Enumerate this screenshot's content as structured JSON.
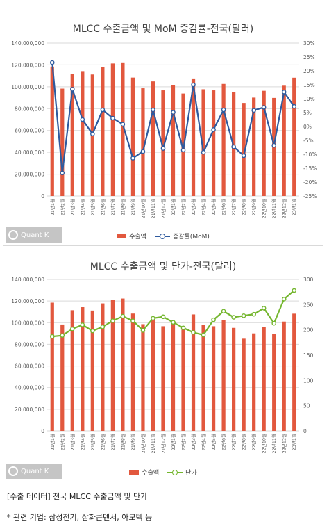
{
  "chart_data": [
    {
      "type": "bar",
      "title": "MLCC 수출금액 및 MoM 증감률-전국(달러)",
      "categories": [
        "21년1월",
        "21년2월",
        "21년3월",
        "21년4월",
        "21년5월",
        "21년6월",
        "21년7월",
        "21년8월",
        "21년9월",
        "21년10월",
        "21년11월",
        "21년12월",
        "22년1월",
        "22년2월",
        "22년3월",
        "22년4월",
        "22년5월",
        "22년6월",
        "22년7월",
        "22년8월",
        "22년9월",
        "22년10월",
        "22년11월",
        "22년12월",
        "23년1월"
      ],
      "y_ticks": [
        "0",
        "20,000,000",
        "40,000,000",
        "60,000,000",
        "80,000,000",
        "100,000,000",
        "120,000,000",
        "140,000,000"
      ],
      "y2_ticks": [
        "-25%",
        "-20%",
        "-15%",
        "-10%",
        "-5%",
        "0%",
        "5%",
        "10%",
        "15%",
        "20%",
        "25%",
        "30%"
      ],
      "ylim": [
        0,
        140000000
      ],
      "y2lim": [
        -25,
        30
      ],
      "grid": true,
      "legend_position": "bottom",
      "series": [
        {
          "name": "수출액",
          "kind": "bar",
          "color": "#e2583e",
          "values": [
            118500000,
            98300000,
            111500000,
            114300000,
            111200000,
            117800000,
            121300000,
            122300000,
            108400000,
            98600000,
            104900000,
            96700000,
            101600000,
            93800000,
            107600000,
            97700000,
            96700000,
            102600000,
            95200000,
            85200000,
            90100000,
            96300000,
            89800000,
            101000000,
            108300000
          ]
        },
        {
          "name": "증감률(MoM)",
          "kind": "line",
          "axis": "right",
          "color": "#2e5a9e",
          "values": [
            23.0,
            -16.7,
            13.4,
            2.5,
            -2.7,
            6.0,
            3.0,
            0.8,
            -11.4,
            -9.0,
            6.0,
            -7.9,
            5.1,
            -8.5,
            15.0,
            -9.3,
            -1.1,
            6.0,
            -7.3,
            -10.5,
            5.8,
            6.9,
            -6.8,
            12.4,
            7.2
          ]
        }
      ]
    },
    {
      "type": "bar",
      "title": "MLCC 수출금액 및 단가-전국(달러)",
      "categories": [
        "21년1월",
        "21년2월",
        "21년3월",
        "21년4월",
        "21년5월",
        "21년6월",
        "21년7월",
        "21년8월",
        "21년9월",
        "21년10월",
        "21년11월",
        "21년12월",
        "22년1월",
        "22년2월",
        "22년3월",
        "22년4월",
        "22년5월",
        "22년6월",
        "22년7월",
        "22년8월",
        "22년9월",
        "22년10월",
        "22년11월",
        "22년12월",
        "23년1월"
      ],
      "y_ticks": [
        "0",
        "20,000,000",
        "40,000,000",
        "60,000,000",
        "80,000,000",
        "100,000,000",
        "120,000,000",
        "140,000,000"
      ],
      "y2_ticks": [
        "0",
        "50",
        "100",
        "150",
        "200",
        "250",
        "300"
      ],
      "ylim": [
        0,
        140000000
      ],
      "y2lim": [
        0,
        300
      ],
      "grid": true,
      "legend_position": "bottom",
      "series": [
        {
          "name": "수출액",
          "kind": "bar",
          "color": "#e2583e",
          "values": [
            118500000,
            98300000,
            111500000,
            114300000,
            111200000,
            117800000,
            121300000,
            122300000,
            108400000,
            98600000,
            104900000,
            96700000,
            101600000,
            93800000,
            107600000,
            97700000,
            96700000,
            102600000,
            95200000,
            85200000,
            90100000,
            96300000,
            89800000,
            101000000,
            108300000
          ]
        },
        {
          "name": "단가",
          "kind": "line",
          "axis": "right",
          "color": "#74b62e",
          "values": [
            187,
            189,
            202,
            210,
            198,
            206,
            218,
            227,
            218,
            199,
            223,
            226,
            215,
            204,
            195,
            190,
            220,
            237,
            225,
            228,
            231,
            243,
            213,
            261,
            278
          ]
        }
      ]
    }
  ],
  "watermark": {
    "text": "Quant K"
  },
  "captions": {
    "line1": "[수출 데이터] 전국 MLCC 수출금액 및 단가",
    "line2": "* 관련 기업: 삼성전기, 삼화콘덴서, 아모텍 등"
  }
}
